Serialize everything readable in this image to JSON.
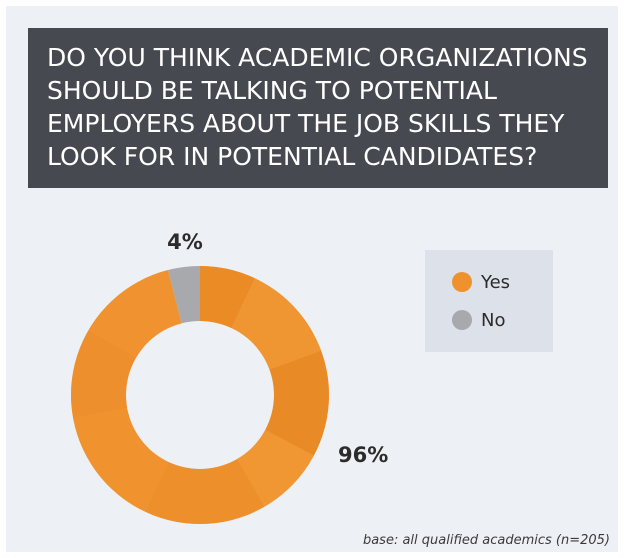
{
  "chart_data": {
    "type": "pie",
    "title": "DO YOU THINK ACADEMIC ORGANIZATIONS SHOULD BE TALKING TO POTENTIAL EMPLOYERS ABOUT THE JOB SKILLS THEY LOOK FOR IN POTENTIAL CANDIDATES?",
    "categories": [
      "Yes",
      "No"
    ],
    "values": [
      96,
      4
    ],
    "data_labels": [
      "96%",
      "4%"
    ],
    "colors": {
      "Yes": "#ef922d",
      "No": "#a7a9ac"
    },
    "legend_placement": "right",
    "donut": true
  },
  "footnote": "base: all qualified academics (n=205)"
}
